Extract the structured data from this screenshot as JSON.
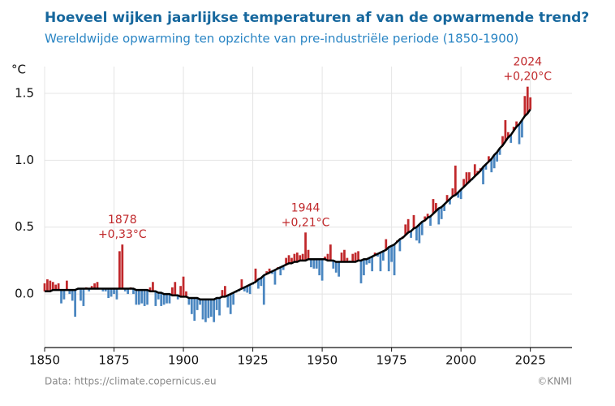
{
  "chart_data": {
    "type": "anomaly-bar",
    "title": "Hoeveel wijken jaarlijkse temperaturen af van de opwarmende trend?",
    "subtitle": "Wereldwijde opwarming ten opzichte van pre-industriële periode (1850-1900)",
    "y_unit": "°C",
    "source": "Data: https://climate.copernicus.eu",
    "credit": "©KNMI",
    "x": [
      1850,
      1851,
      1852,
      1853,
      1854,
      1855,
      1856,
      1857,
      1858,
      1859,
      1860,
      1861,
      1862,
      1863,
      1864,
      1865,
      1866,
      1867,
      1868,
      1869,
      1870,
      1871,
      1872,
      1873,
      1874,
      1875,
      1876,
      1877,
      1878,
      1879,
      1880,
      1881,
      1882,
      1883,
      1884,
      1885,
      1886,
      1887,
      1888,
      1889,
      1890,
      1891,
      1892,
      1893,
      1894,
      1895,
      1896,
      1897,
      1898,
      1899,
      1900,
      1901,
      1902,
      1903,
      1904,
      1905,
      1906,
      1907,
      1908,
      1909,
      1910,
      1911,
      1912,
      1913,
      1914,
      1915,
      1916,
      1917,
      1918,
      1919,
      1920,
      1921,
      1922,
      1923,
      1924,
      1925,
      1926,
      1927,
      1928,
      1929,
      1930,
      1931,
      1932,
      1933,
      1934,
      1935,
      1936,
      1937,
      1938,
      1939,
      1940,
      1941,
      1942,
      1943,
      1944,
      1945,
      1946,
      1947,
      1948,
      1949,
      1950,
      1951,
      1952,
      1953,
      1954,
      1955,
      1956,
      1957,
      1958,
      1959,
      1960,
      1961,
      1962,
      1963,
      1964,
      1965,
      1966,
      1967,
      1968,
      1969,
      1970,
      1971,
      1972,
      1973,
      1974,
      1975,
      1976,
      1977,
      1978,
      1979,
      1980,
      1981,
      1982,
      1983,
      1984,
      1985,
      1986,
      1987,
      1988,
      1989,
      1990,
      1991,
      1992,
      1993,
      1994,
      1995,
      1996,
      1997,
      1998,
      1999,
      2000,
      2001,
      2002,
      2003,
      2004,
      2005,
      2006,
      2007,
      2008,
      2009,
      2010,
      2011,
      2012,
      2013,
      2014,
      2015,
      2016,
      2017,
      2018,
      2019,
      2020,
      2021,
      2022,
      2023,
      2024,
      2025
    ],
    "series": [
      {
        "color_above": "#c0282b",
        "color_below": "#4a86c0",
        "values": [
          0.08,
          0.11,
          0.1,
          0.09,
          0.07,
          0.08,
          -0.07,
          -0.04,
          0.1,
          0.0,
          -0.05,
          -0.17,
          0.03,
          -0.05,
          -0.09,
          0.05,
          0.02,
          0.06,
          0.08,
          0.09,
          0.04,
          0.02,
          0.02,
          -0.03,
          -0.02,
          0.0,
          -0.04,
          0.32,
          0.37,
          0.02,
          0.0,
          0.05,
          0.0,
          -0.08,
          -0.08,
          -0.07,
          -0.09,
          -0.08,
          0.05,
          0.09,
          -0.09,
          -0.04,
          -0.09,
          -0.08,
          -0.07,
          -0.07,
          0.05,
          0.09,
          -0.04,
          0.06,
          0.13,
          0.02,
          -0.08,
          -0.15,
          -0.2,
          -0.12,
          -0.08,
          -0.19,
          -0.21,
          -0.18,
          -0.17,
          -0.21,
          -0.12,
          -0.16,
          0.03,
          0.06,
          -0.1,
          -0.15,
          -0.08,
          0.01,
          0.02,
          0.11,
          0.02,
          0.01,
          0.0,
          0.07,
          0.19,
          0.04,
          0.06,
          -0.08,
          0.17,
          0.19,
          0.15,
          0.07,
          0.2,
          0.14,
          0.18,
          0.27,
          0.29,
          0.27,
          0.3,
          0.31,
          0.29,
          0.3,
          0.46,
          0.33,
          0.2,
          0.19,
          0.19,
          0.14,
          0.1,
          0.28,
          0.3,
          0.37,
          0.19,
          0.16,
          0.13,
          0.31,
          0.33,
          0.27,
          0.25,
          0.3,
          0.31,
          0.32,
          0.08,
          0.14,
          0.22,
          0.23,
          0.17,
          0.31,
          0.28,
          0.17,
          0.25,
          0.41,
          0.17,
          0.24,
          0.14,
          0.4,
          0.32,
          0.43,
          0.52,
          0.56,
          0.42,
          0.59,
          0.4,
          0.38,
          0.44,
          0.58,
          0.6,
          0.51,
          0.71,
          0.68,
          0.52,
          0.56,
          0.62,
          0.74,
          0.67,
          0.79,
          0.96,
          0.72,
          0.71,
          0.86,
          0.91,
          0.91,
          0.85,
          0.97,
          0.92,
          0.94,
          0.82,
          0.93,
          1.03,
          0.91,
          0.94,
          0.99,
          1.04,
          1.18,
          1.3,
          1.21,
          1.13,
          1.25,
          1.29,
          1.12,
          1.17,
          1.48,
          1.55,
          1.47
        ]
      },
      {
        "color": "#000000",
        "values": [
          0.02,
          0.02,
          0.02,
          0.03,
          0.03,
          0.03,
          0.03,
          0.03,
          0.03,
          0.03,
          0.03,
          0.03,
          0.04,
          0.04,
          0.04,
          0.04,
          0.04,
          0.04,
          0.04,
          0.04,
          0.04,
          0.04,
          0.04,
          0.04,
          0.04,
          0.04,
          0.04,
          0.04,
          0.04,
          0.04,
          0.04,
          0.04,
          0.04,
          0.03,
          0.03,
          0.03,
          0.03,
          0.03,
          0.02,
          0.02,
          0.02,
          0.01,
          0.01,
          0.0,
          0.0,
          0.0,
          -0.01,
          -0.01,
          -0.01,
          -0.02,
          -0.02,
          -0.02,
          -0.03,
          -0.03,
          -0.03,
          -0.03,
          -0.04,
          -0.04,
          -0.04,
          -0.04,
          -0.04,
          -0.04,
          -0.03,
          -0.03,
          -0.02,
          -0.02,
          -0.01,
          0.0,
          0.01,
          0.02,
          0.03,
          0.04,
          0.05,
          0.06,
          0.07,
          0.08,
          0.09,
          0.11,
          0.12,
          0.14,
          0.15,
          0.16,
          0.17,
          0.18,
          0.19,
          0.2,
          0.21,
          0.22,
          0.23,
          0.23,
          0.24,
          0.24,
          0.25,
          0.25,
          0.25,
          0.26,
          0.26,
          0.26,
          0.26,
          0.26,
          0.26,
          0.26,
          0.25,
          0.25,
          0.25,
          0.24,
          0.24,
          0.24,
          0.24,
          0.24,
          0.24,
          0.24,
          0.24,
          0.25,
          0.25,
          0.26,
          0.26,
          0.27,
          0.28,
          0.29,
          0.3,
          0.31,
          0.32,
          0.33,
          0.35,
          0.36,
          0.37,
          0.39,
          0.41,
          0.42,
          0.44,
          0.46,
          0.47,
          0.49,
          0.5,
          0.52,
          0.54,
          0.55,
          0.57,
          0.58,
          0.6,
          0.62,
          0.64,
          0.65,
          0.67,
          0.69,
          0.71,
          0.73,
          0.74,
          0.76,
          0.78,
          0.8,
          0.82,
          0.84,
          0.86,
          0.88,
          0.9,
          0.92,
          0.95,
          0.97,
          0.99,
          1.01,
          1.04,
          1.06,
          1.09,
          1.11,
          1.14,
          1.17,
          1.19,
          1.22,
          1.25,
          1.27,
          1.3,
          1.33,
          1.35,
          1.38
        ]
      }
    ],
    "annotations": [
      {
        "x": 1878,
        "lines": [
          "1878",
          "+0,33°C"
        ]
      },
      {
        "x": 1944,
        "lines": [
          "1944",
          "+0,21°C"
        ]
      },
      {
        "x": 2024,
        "lines": [
          "2024",
          "+0,20°C"
        ]
      }
    ],
    "xlim": [
      1850,
      2040
    ],
    "xticks": [
      1850,
      1875,
      1900,
      1925,
      1950,
      1975,
      2000,
      2025
    ],
    "ylim": [
      -0.4,
      1.7
    ],
    "yticks": [
      {
        "value": 0,
        "label": "0.0"
      },
      0.5,
      {
        "value": 1,
        "label": "1.0"
      },
      1.5
    ],
    "grid": true
  }
}
